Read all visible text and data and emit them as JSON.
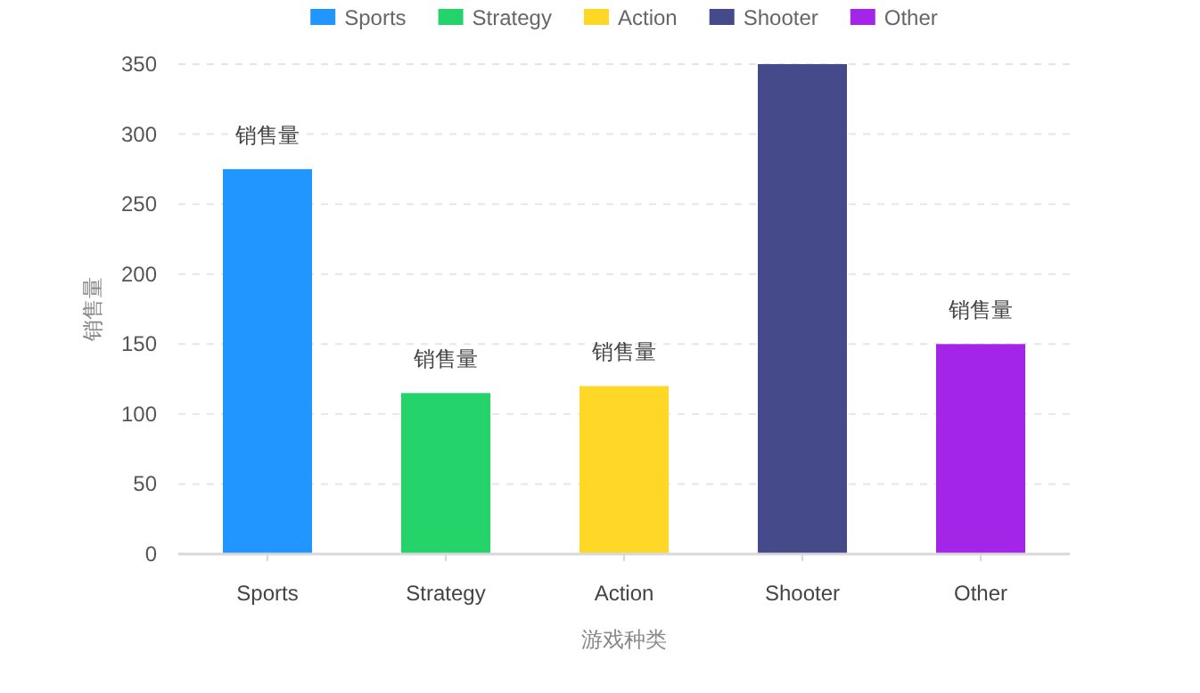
{
  "chart_data": {
    "type": "bar",
    "xlabel": "游戏种类",
    "ylabel": "销售量",
    "stacked": true,
    "categories": [
      "Sports",
      "Strategy",
      "Action",
      "Shooter",
      "Other"
    ],
    "series": [
      {
        "name": "Sports",
        "color": "#2196ff",
        "values": [
          275,
          null,
          null,
          null,
          null
        ],
        "value_labels": [
          "销售量",
          null,
          null,
          null,
          null
        ]
      },
      {
        "name": "Strategy",
        "color": "#25d36b",
        "values": [
          null,
          115,
          null,
          null,
          null
        ],
        "value_labels": [
          null,
          "销售量",
          null,
          null,
          null
        ]
      },
      {
        "name": "Action",
        "color": "#ffd726",
        "values": [
          null,
          null,
          120,
          null,
          null
        ],
        "value_labels": [
          null,
          null,
          "销售量",
          null,
          null
        ]
      },
      {
        "name": "Shooter",
        "color": "#444a8a",
        "values": [
          null,
          null,
          null,
          350,
          null
        ],
        "value_labels": [
          null,
          null,
          null,
          null,
          null
        ]
      },
      {
        "name": "Other",
        "color": "#a326e8",
        "values": [
          null,
          null,
          null,
          null,
          150
        ],
        "value_labels": [
          null,
          null,
          null,
          null,
          "销售量"
        ]
      }
    ],
    "ylim": [
      0,
      350
    ],
    "yticks": [
      0,
      50,
      100,
      150,
      200,
      250,
      300,
      350
    ],
    "grid": "y",
    "legend": "top"
  }
}
